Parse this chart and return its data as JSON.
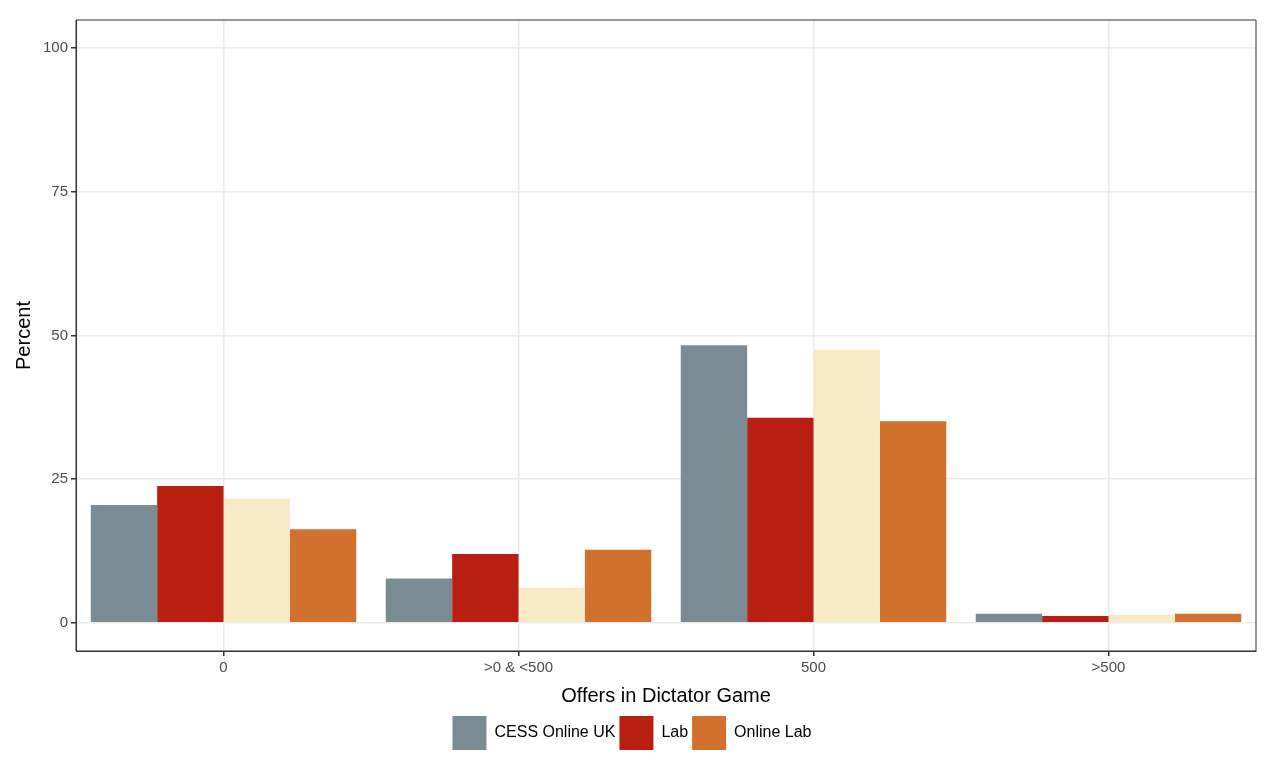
{
  "chart_data": {
    "type": "bar",
    "xlabel": "Offers in Dictator Game",
    "ylabel": "Percent",
    "categories": [
      "0",
      ">0 & <500",
      "500",
      ">500"
    ],
    "series": [
      {
        "name": "CESS Online UK",
        "color": "#798c93",
        "values": [
          20.5,
          7.7,
          48.3,
          1.6
        ]
      },
      {
        "name": "Lab",
        "color": "#b91f11",
        "values": [
          23.8,
          12.0,
          35.7,
          1.2
        ]
      },
      {
        "color": "#f7eac6",
        "values": [
          21.6,
          6.1,
          47.5,
          1.4
        ]
      },
      {
        "name": "Online Lab",
        "color": "#d2702e",
        "values": [
          16.3,
          12.7,
          35.1,
          1.6
        ]
      }
    ],
    "ylim": [
      -4.9,
      104.9
    ],
    "yticks": [
      0,
      25,
      50,
      75,
      100
    ],
    "grid": true,
    "legend": "bottom"
  }
}
